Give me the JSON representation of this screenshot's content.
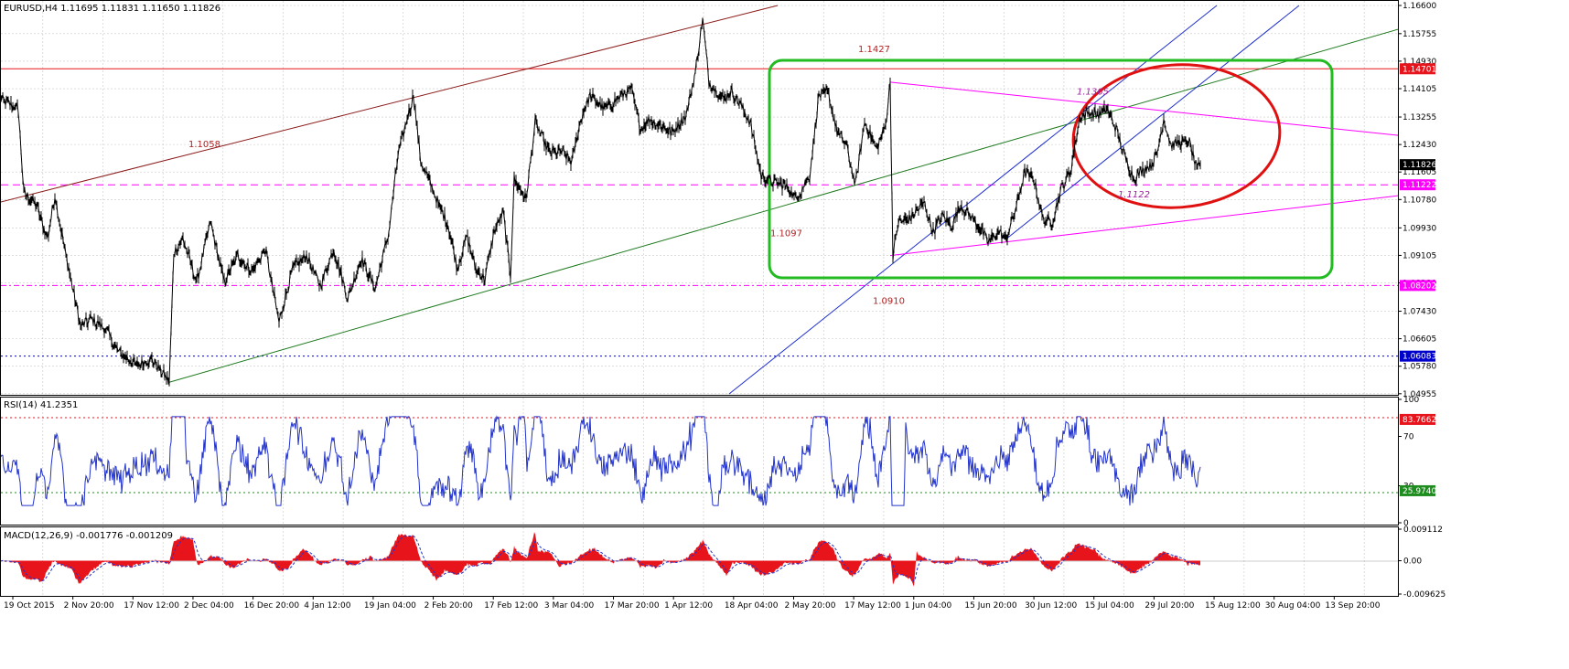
{
  "main_panel": {
    "header": "EURUSD,H4  1.11695 1.11831 1.11650 1.11826",
    "price_axis": [
      "1.16600",
      "1.15755",
      "1.14930",
      "1.14105",
      "1.13255",
      "1.12430",
      "1.11605",
      "1.10780",
      "1.09930",
      "1.09105",
      "1.08280",
      "1.07430",
      "1.06605",
      "1.05780",
      "1.04955"
    ],
    "price_tags": [
      {
        "text": "1.14701",
        "price": 1.14701,
        "color": "#e8141c"
      },
      {
        "text": "1.11826",
        "price": 1.11826,
        "color": "#000000"
      },
      {
        "text": "1.11222",
        "price": 1.11222,
        "color": "#ff00ff"
      },
      {
        "text": "1.08202",
        "price": 1.08202,
        "color": "#ff00ff"
      },
      {
        "text": "1.06083",
        "price": 1.06083,
        "color": "#0000cc"
      }
    ],
    "annotations": [
      {
        "text": "1.1427",
        "price": 1.152,
        "bar": 938,
        "color": "#b22222",
        "italic": false
      },
      {
        "text": "1.1058",
        "price": 1.1235,
        "bar": 206,
        "color": "#b22222",
        "italic": false
      },
      {
        "text": "1.1097",
        "price": 1.0968,
        "bar": 842,
        "color": "#b22222",
        "italic": false
      },
      {
        "text": "1.0910",
        "price": 1.0765,
        "bar": 954,
        "color": "#b22222",
        "italic": false
      },
      {
        "text": "1.1365",
        "price": 1.1393,
        "bar": 1177,
        "color": "#a020a0",
        "italic": true
      },
      {
        "text": "1.1122",
        "price": 1.1085,
        "bar": 1222,
        "color": "#a020a0",
        "italic": true
      }
    ]
  },
  "rsi_panel": {
    "header": "RSI(14) 41.2351",
    "axis": [
      "100",
      "70",
      "30",
      "0"
    ],
    "tags": [
      {
        "text": "83.7662",
        "value": 83.7662,
        "color": "#e8141c"
      },
      {
        "text": "25.9740",
        "value": 25.974,
        "color": "#1e8c1e"
      }
    ]
  },
  "macd_panel": {
    "header": "MACD(12,26,9) -0.001776 -0.001209",
    "axis": [
      "0.009112",
      "0.00",
      "-0.009625"
    ]
  },
  "time_axis": [
    "19 Oct 2015",
    "2 Nov 20:00",
    "17 Nov 12:00",
    "2 Dec 04:00",
    "16 Dec 20:00",
    "4 Jan 12:00",
    "19 Jan 04:00",
    "2 Feb 20:00",
    "17 Feb 12:00",
    "3 Mar 04:00",
    "17 Mar 20:00",
    "1 Apr 12:00",
    "18 Apr 04:00",
    "2 May 20:00",
    "17 May 12:00",
    "1 Jun 04:00",
    "15 Jun 20:00",
    "30 Jun 12:00",
    "15 Jul 04:00",
    "29 Jul 20:00",
    "15 Aug 12:00",
    "30 Aug 04:00",
    "13 Sep 20:00"
  ],
  "colors": {
    "up_line": "#8b1a1a",
    "support": "#1e7a1e",
    "channel": "#1f2fd0",
    "triangle": "#ff00ff",
    "box": "#22bb22",
    "ellipse": "#e01010"
  },
  "chart_data": {
    "type": "line",
    "symbol": "EURUSD",
    "timeframe": "H4",
    "ohlc_last": {
      "open": 1.11695,
      "high": 1.11831,
      "low": 1.1165,
      "close": 1.11826
    },
    "ylim": [
      1.0495,
      1.166
    ],
    "price_keypoints": [
      [
        0,
        1.138
      ],
      [
        20,
        1.135
      ],
      [
        26,
        1.11
      ],
      [
        40,
        1.106
      ],
      [
        52,
        1.096
      ],
      [
        60,
        1.109
      ],
      [
        72,
        1.091
      ],
      [
        88,
        1.07
      ],
      [
        100,
        1.072
      ],
      [
        115,
        1.069
      ],
      [
        130,
        1.062
      ],
      [
        150,
        1.058
      ],
      [
        165,
        1.06
      ],
      [
        180,
        1.055
      ],
      [
        185,
        1.053
      ],
      [
        190,
        1.092
      ],
      [
        200,
        1.096
      ],
      [
        215,
        1.083
      ],
      [
        230,
        1.101
      ],
      [
        245,
        1.083
      ],
      [
        260,
        1.091
      ],
      [
        275,
        1.086
      ],
      [
        290,
        1.093
      ],
      [
        305,
        1.071
      ],
      [
        320,
        1.087
      ],
      [
        335,
        1.091
      ],
      [
        350,
        1.082
      ],
      [
        365,
        1.093
      ],
      [
        380,
        1.078
      ],
      [
        395,
        1.09
      ],
      [
        410,
        1.081
      ],
      [
        425,
        1.098
      ],
      [
        435,
        1.121
      ],
      [
        445,
        1.132
      ],
      [
        452,
        1.139
      ],
      [
        460,
        1.119
      ],
      [
        470,
        1.113
      ],
      [
        480,
        1.106
      ],
      [
        490,
        1.1
      ],
      [
        500,
        1.087
      ],
      [
        510,
        1.097
      ],
      [
        520,
        1.087
      ],
      [
        530,
        1.084
      ],
      [
        540,
        1.098
      ],
      [
        550,
        1.104
      ],
      [
        558,
        1.085
      ],
      [
        562,
        1.114
      ],
      [
        575,
        1.108
      ],
      [
        585,
        1.131
      ],
      [
        600,
        1.122
      ],
      [
        615,
        1.122
      ],
      [
        625,
        1.119
      ],
      [
        635,
        1.132
      ],
      [
        645,
        1.139
      ],
      [
        660,
        1.135
      ],
      [
        675,
        1.138
      ],
      [
        690,
        1.141
      ],
      [
        700,
        1.129
      ],
      [
        710,
        1.132
      ],
      [
        720,
        1.13
      ],
      [
        735,
        1.128
      ],
      [
        750,
        1.133
      ],
      [
        760,
        1.146
      ],
      [
        768,
        1.162
      ],
      [
        775,
        1.143
      ],
      [
        790,
        1.138
      ],
      [
        800,
        1.14
      ],
      [
        810,
        1.136
      ],
      [
        820,
        1.131
      ],
      [
        832,
        1.115
      ],
      [
        845,
        1.113
      ],
      [
        858,
        1.112
      ],
      [
        870,
        1.108
      ],
      [
        885,
        1.115
      ],
      [
        895,
        1.139
      ],
      [
        905,
        1.14
      ],
      [
        915,
        1.128
      ],
      [
        925,
        1.124
      ],
      [
        935,
        1.112
      ],
      [
        945,
        1.131
      ],
      [
        958,
        1.123
      ],
      [
        968,
        1.13
      ],
      [
        973,
        1.143
      ],
      [
        976,
        1.091
      ],
      [
        982,
        1.101
      ],
      [
        995,
        1.102
      ],
      [
        1010,
        1.107
      ],
      [
        1020,
        1.098
      ],
      [
        1030,
        1.103
      ],
      [
        1040,
        1.1
      ],
      [
        1050,
        1.106
      ],
      [
        1060,
        1.103
      ],
      [
        1070,
        1.1
      ],
      [
        1080,
        1.095
      ],
      [
        1092,
        1.098
      ],
      [
        1100,
        1.096
      ],
      [
        1110,
        1.105
      ],
      [
        1120,
        1.116
      ],
      [
        1130,
        1.114
      ],
      [
        1140,
        1.102
      ],
      [
        1150,
        1.101
      ],
      [
        1160,
        1.111
      ],
      [
        1170,
        1.116
      ],
      [
        1180,
        1.132
      ],
      [
        1190,
        1.134
      ],
      [
        1200,
        1.133
      ],
      [
        1210,
        1.135
      ],
      [
        1220,
        1.129
      ],
      [
        1230,
        1.12
      ],
      [
        1240,
        1.114
      ],
      [
        1250,
        1.117
      ],
      [
        1258,
        1.118
      ],
      [
        1265,
        1.122
      ],
      [
        1272,
        1.132
      ],
      [
        1280,
        1.124
      ],
      [
        1290,
        1.125
      ],
      [
        1300,
        1.125
      ],
      [
        1308,
        1.117
      ],
      [
        1312,
        1.118
      ]
    ],
    "levels": [
      1.14701,
      1.11826,
      1.11222,
      1.08202,
      1.06083
    ],
    "trendlines": [
      {
        "color": "#8b1a1a",
        "from": [
          0,
          1.107
        ],
        "to": [
          850,
          1.166
        ]
      },
      {
        "color": "#1e7a1e",
        "from": [
          185,
          1.053
        ],
        "to": [
          1530,
          1.159
        ]
      },
      {
        "color": "#1f2fd0",
        "from": [
          797,
          1.0495
        ],
        "to": [
          1330,
          1.166
        ]
      },
      {
        "color": "#1f2fd0",
        "from": [
          1100,
          1.096
        ],
        "to": [
          1420,
          1.166
        ]
      },
      {
        "color": "#ff00ff",
        "from": [
          973,
          1.143
        ],
        "to": [
          1530,
          1.127
        ]
      },
      {
        "color": "#ff00ff",
        "from": [
          973,
          1.091
        ],
        "to": [
          1530,
          1.109
        ]
      }
    ],
    "rsi": {
      "name": "RSI(14)",
      "last": 41.2351,
      "levels": [
        83.7662,
        25.974
      ],
      "range": [
        0,
        100
      ]
    },
    "macd": {
      "name": "MACD(12,26,9)",
      "main": -0.001776,
      "signal": -0.001209,
      "range": [
        -0.009625,
        0.009112
      ]
    }
  }
}
